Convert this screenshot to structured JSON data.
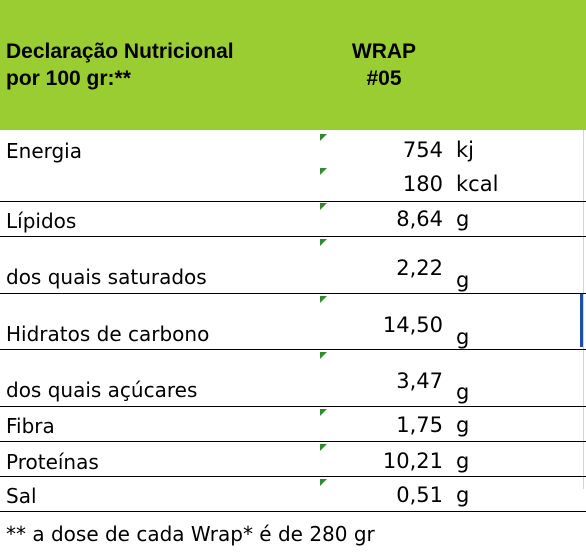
{
  "header": {
    "title_line1": "Declaração Nutricional",
    "title_line2": "por 100 gr:**",
    "product_line1": "WRAP",
    "product_line2": "#05"
  },
  "rows": [
    {
      "label": "Energia",
      "value": "754",
      "unit": "kj"
    },
    {
      "label": "",
      "value": "180",
      "unit": "kcal"
    },
    {
      "label": "Lípidos",
      "value": "8,64",
      "unit": "g"
    },
    {
      "label": "dos quais saturados",
      "value": "2,22",
      "unit": "g"
    },
    {
      "label": "Hidratos de carbono",
      "value": "14,50",
      "unit": "g"
    },
    {
      "label": "dos quais açúcares",
      "value": "3,47",
      "unit": "g"
    },
    {
      "label": "Fibra",
      "value": "1,75",
      "unit": "g"
    },
    {
      "label": "Proteínas",
      "value": "10,21",
      "unit": "g"
    },
    {
      "label": "Sal",
      "value": "0,51",
      "unit": "g"
    }
  ],
  "footnote": "** a dose de cada Wrap* é de 280 gr",
  "colors": {
    "header_bg": "#9acd32",
    "marker": "#2e8b2e",
    "selection": "#1f4ea8"
  }
}
